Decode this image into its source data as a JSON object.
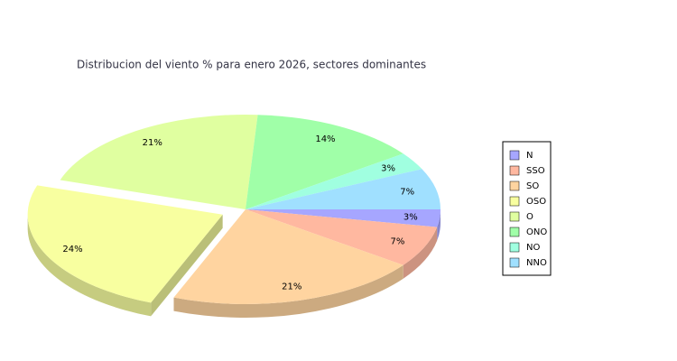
{
  "chart_data": {
    "type": "pie",
    "title": "Distribucion del viento % para enero 2026, sectores dominantes",
    "categories": [
      "N",
      "SSO",
      "SO",
      "OSO",
      "O",
      "ONO",
      "NO",
      "NNO"
    ],
    "values": [
      3,
      7,
      21,
      24,
      21,
      14,
      3,
      7
    ],
    "value_labels": [
      "3%",
      "7%",
      "21%",
      "24%",
      "21%",
      "14%",
      "3%",
      "7%"
    ],
    "colors": [
      "#a6a6ff",
      "#ffb8a0",
      "#ffd4a0",
      "#f8ffa0",
      "#e0ffa0",
      "#a0ffa8",
      "#a0ffe0",
      "#a0e0ff"
    ],
    "exploded": [
      3
    ],
    "legend": "right"
  }
}
